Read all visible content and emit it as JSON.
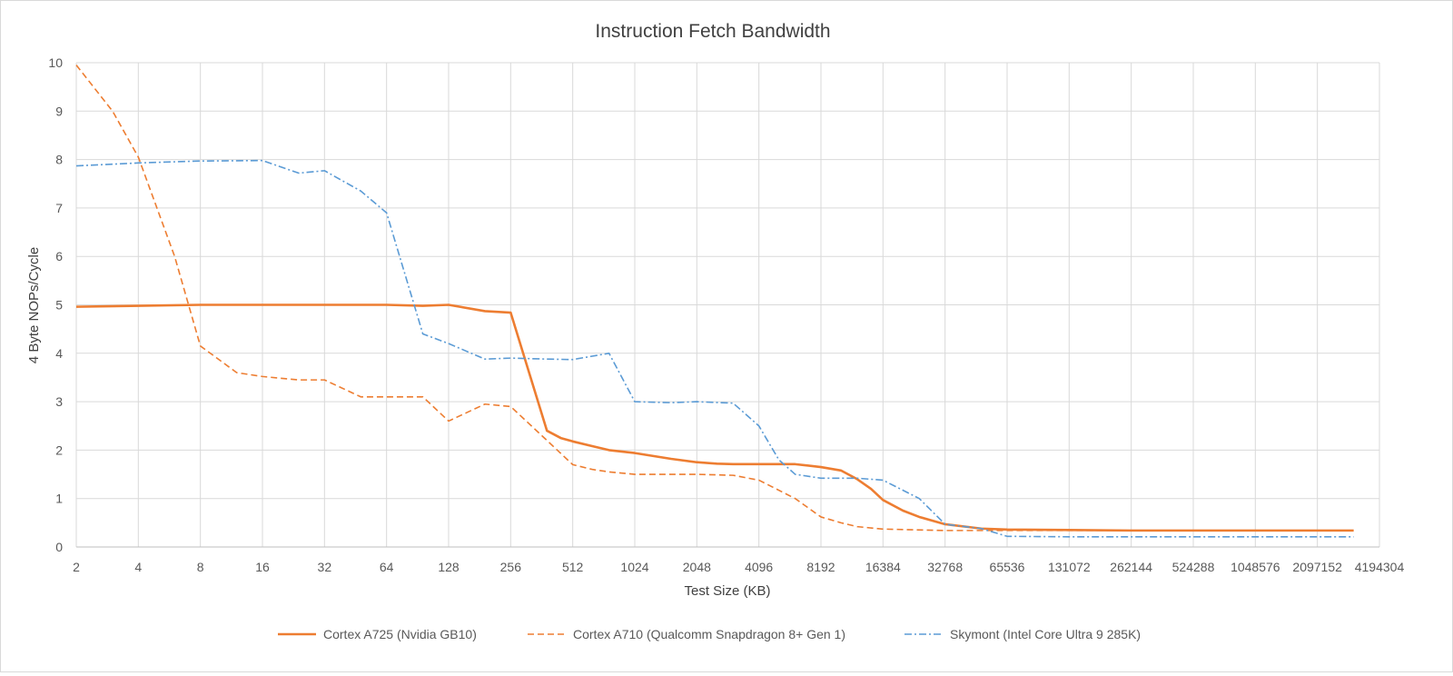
{
  "chart_data": {
    "type": "line",
    "title": "Instruction Fetch Bandwidth",
    "xlabel": "Test Size (KB)",
    "ylabel": "4 Byte NOPs/Cycle",
    "x_scale": "log2",
    "x_ticks": [
      "2",
      "4",
      "8",
      "16",
      "32",
      "64",
      "128",
      "256",
      "512",
      "1024",
      "2048",
      "4096",
      "8192",
      "16384",
      "32768",
      "65536",
      "131072",
      "262144",
      "524288",
      "1048576",
      "2097152",
      "4194304"
    ],
    "ylim": [
      0,
      10
    ],
    "y_ticks": [
      "0",
      "1",
      "2",
      "3",
      "4",
      "5",
      "6",
      "7",
      "8",
      "9",
      "10"
    ],
    "grid": true,
    "legend_position": "bottom",
    "series": [
      {
        "name": "Cortex A725 (Nvidia GB10)",
        "color": "#ED7D31",
        "dash": "solid",
        "x": [
          2,
          4,
          8,
          16,
          32,
          64,
          96,
          128,
          192,
          256,
          384,
          448,
          512,
          640,
          768,
          1024,
          1536,
          2048,
          2560,
          3072,
          4096,
          5120,
          6144,
          8192,
          10240,
          12288,
          14336,
          16384,
          20480,
          24576,
          32768,
          49152,
          65536,
          131072,
          262144,
          524288,
          1048576,
          2097152,
          3145728
        ],
        "y": [
          4.96,
          4.98,
          5.0,
          5.0,
          5.0,
          5.0,
          4.98,
          5.0,
          4.87,
          4.84,
          2.4,
          2.25,
          2.18,
          2.08,
          2.0,
          1.94,
          1.82,
          1.75,
          1.72,
          1.71,
          1.71,
          1.71,
          1.71,
          1.65,
          1.58,
          1.4,
          1.2,
          0.97,
          0.75,
          0.62,
          0.47,
          0.38,
          0.36,
          0.35,
          0.34,
          0.34,
          0.34,
          0.34,
          0.34
        ]
      },
      {
        "name": "Cortex A710 (Qualcomm Snapdragon 8+ Gen 1)",
        "color": "#ED7D31",
        "dash": "dashed",
        "x": [
          2,
          3,
          4,
          6,
          8,
          12,
          16,
          24,
          32,
          48,
          64,
          96,
          128,
          192,
          256,
          384,
          512,
          640,
          768,
          1024,
          1536,
          2048,
          3072,
          4096,
          6144,
          8192,
          10240,
          12288,
          16384,
          32768,
          65536,
          131072,
          262144,
          524288,
          1048576,
          2097152,
          3145728
        ],
        "y": [
          9.95,
          9.0,
          8.05,
          6.0,
          4.15,
          3.6,
          3.52,
          3.45,
          3.45,
          3.1,
          3.1,
          3.1,
          2.6,
          2.95,
          2.9,
          2.2,
          1.7,
          1.6,
          1.55,
          1.5,
          1.5,
          1.5,
          1.48,
          1.38,
          1.0,
          0.62,
          0.5,
          0.42,
          0.37,
          0.34,
          0.34,
          0.34,
          0.34,
          0.34,
          0.34,
          0.34,
          0.34
        ]
      },
      {
        "name": "Skymont (Intel Core Ultra 9 285K)",
        "color": "#5B9BD5",
        "dash": "dashdot",
        "x": [
          2,
          4,
          8,
          16,
          24,
          32,
          48,
          64,
          96,
          128,
          192,
          256,
          384,
          512,
          768,
          1024,
          1536,
          2048,
          3072,
          4096,
          5120,
          6144,
          8192,
          12288,
          16384,
          24576,
          32768,
          49152,
          65536,
          131072,
          262144,
          524288,
          1048576,
          2097152,
          3145728
        ],
        "y": [
          7.87,
          7.93,
          7.97,
          7.98,
          7.72,
          7.77,
          7.35,
          6.9,
          4.4,
          4.2,
          3.88,
          3.9,
          3.88,
          3.87,
          4.0,
          3.0,
          2.98,
          3.0,
          2.97,
          2.5,
          1.8,
          1.5,
          1.42,
          1.42,
          1.38,
          1.0,
          0.47,
          0.38,
          0.22,
          0.21,
          0.21,
          0.21,
          0.21,
          0.21,
          0.21
        ]
      }
    ]
  }
}
